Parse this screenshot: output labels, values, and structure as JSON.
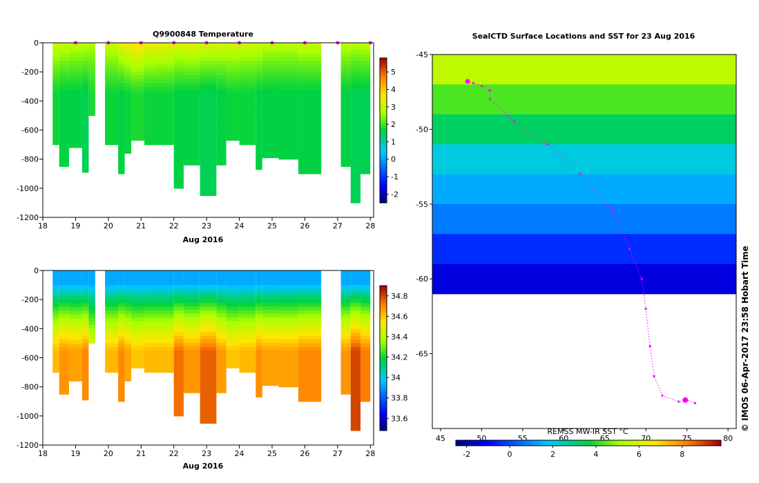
{
  "figure": {
    "credit": "© IMOS 06-Apr-2017 23:58 Hobart Time"
  },
  "chart_data": [
    {
      "type": "heatmap",
      "title": "Q9900848  Temperature",
      "xlabel": "Aug 2016",
      "ylabel": "",
      "xlim": [
        18,
        28.1
      ],
      "ylim": [
        -1200,
        0
      ],
      "x_ticks": [
        "18",
        "19",
        "20",
        "21",
        "22",
        "23",
        "24",
        "25",
        "26",
        "27",
        "28"
      ],
      "y_ticks": [
        "0",
        "-200",
        "-400",
        "-600",
        "-800",
        "-1000",
        "-1200"
      ],
      "colorbar": {
        "label": "",
        "ticks": [
          "-2",
          "-1",
          "0",
          "1",
          "2",
          "3",
          "4",
          "5"
        ],
        "min": -2.5,
        "max": 5.8
      },
      "profiles": [
        {
          "x0": 18.3,
          "x1": 18.5,
          "maxdepth": 700,
          "surface": 3.2,
          "deep": 1.7
        },
        {
          "x0": 18.5,
          "x1": 18.8,
          "maxdepth": 850,
          "surface": 3.1,
          "deep": 1.6
        },
        {
          "x0": 18.8,
          "x1": 19.2,
          "maxdepth": 720,
          "surface": 3.0,
          "deep": 1.6
        },
        {
          "x0": 19.2,
          "x1": 19.4,
          "maxdepth": 890,
          "surface": 3.0,
          "deep": 1.5
        },
        {
          "x0": 19.4,
          "x1": 19.6,
          "maxdepth": 500,
          "surface": 2.8,
          "deep": 1.8
        },
        {
          "x0": 19.9,
          "x1": 20.3,
          "maxdepth": 700,
          "surface": 3.1,
          "deep": 1.7
        },
        {
          "x0": 20.3,
          "x1": 20.5,
          "maxdepth": 900,
          "surface": 3.6,
          "deep": 1.6
        },
        {
          "x0": 20.5,
          "x1": 20.7,
          "maxdepth": 760,
          "surface": 3.8,
          "deep": 1.7
        },
        {
          "x0": 20.7,
          "x1": 21.1,
          "maxdepth": 670,
          "surface": 4.0,
          "deep": 1.8
        },
        {
          "x0": 21.1,
          "x1": 21.5,
          "maxdepth": 700,
          "surface": 3.7,
          "deep": 1.7
        },
        {
          "x0": 21.5,
          "x1": 22.0,
          "maxdepth": 700,
          "surface": 3.6,
          "deep": 1.7
        },
        {
          "x0": 22.0,
          "x1": 22.3,
          "maxdepth": 1000,
          "surface": 3.4,
          "deep": 1.6
        },
        {
          "x0": 22.3,
          "x1": 22.8,
          "maxdepth": 840,
          "surface": 3.5,
          "deep": 1.6
        },
        {
          "x0": 22.8,
          "x1": 23.3,
          "maxdepth": 1050,
          "surface": 3.4,
          "deep": 1.5
        },
        {
          "x0": 23.3,
          "x1": 23.6,
          "maxdepth": 840,
          "surface": 3.3,
          "deep": 1.6
        },
        {
          "x0": 23.6,
          "x1": 24.0,
          "maxdepth": 670,
          "surface": 3.3,
          "deep": 1.7
        },
        {
          "x0": 24.0,
          "x1": 24.5,
          "maxdepth": 700,
          "surface": 3.2,
          "deep": 1.7
        },
        {
          "x0": 24.5,
          "x1": 24.7,
          "maxdepth": 870,
          "surface": 3.2,
          "deep": 1.6
        },
        {
          "x0": 24.7,
          "x1": 25.2,
          "maxdepth": 790,
          "surface": 3.0,
          "deep": 1.6
        },
        {
          "x0": 25.2,
          "x1": 25.8,
          "maxdepth": 800,
          "surface": 3.0,
          "deep": 1.6
        },
        {
          "x0": 25.8,
          "x1": 26.5,
          "maxdepth": 900,
          "surface": 3.1,
          "deep": 1.6
        },
        {
          "x0": 27.1,
          "x1": 27.4,
          "maxdepth": 850,
          "surface": 3.0,
          "deep": 1.6
        },
        {
          "x0": 27.4,
          "x1": 27.7,
          "maxdepth": 1100,
          "surface": 2.9,
          "deep": 1.5
        },
        {
          "x0": 27.7,
          "x1": 28.0,
          "maxdepth": 900,
          "surface": 3.0,
          "deep": 1.5
        }
      ],
      "station_markers": [
        19.0,
        20.0,
        21.0,
        22.0,
        23.0,
        24.0,
        25.0,
        26.0,
        27.0,
        28.0
      ]
    },
    {
      "type": "heatmap",
      "title": "",
      "xlabel": "Aug 2016",
      "ylabel": "",
      "xlim": [
        18,
        28.1
      ],
      "ylim": [
        -1200,
        0
      ],
      "x_ticks": [
        "18",
        "19",
        "20",
        "21",
        "22",
        "23",
        "24",
        "25",
        "26",
        "27",
        "28"
      ],
      "y_ticks": [
        "0",
        "-200",
        "-400",
        "-600",
        "-800",
        "-1000",
        "-1200"
      ],
      "colorbar": {
        "label": "",
        "ticks": [
          "33.6",
          "33.8",
          "34",
          "34.2",
          "34.4",
          "34.6",
          "34.8"
        ],
        "min": 33.48,
        "max": 34.9
      },
      "profiles": [
        {
          "x0": 18.3,
          "x1": 18.5,
          "maxdepth": 700,
          "surface": 33.93,
          "deep": 34.62
        },
        {
          "x0": 18.5,
          "x1": 18.8,
          "maxdepth": 850,
          "surface": 33.93,
          "deep": 34.68
        },
        {
          "x0": 18.8,
          "x1": 19.2,
          "maxdepth": 760,
          "surface": 33.93,
          "deep": 34.66
        },
        {
          "x0": 19.2,
          "x1": 19.4,
          "maxdepth": 890,
          "surface": 33.93,
          "deep": 34.7
        },
        {
          "x0": 19.4,
          "x1": 19.6,
          "maxdepth": 500,
          "surface": 33.93,
          "deep": 34.5
        },
        {
          "x0": 19.9,
          "x1": 20.3,
          "maxdepth": 700,
          "surface": 33.93,
          "deep": 34.62
        },
        {
          "x0": 20.3,
          "x1": 20.5,
          "maxdepth": 900,
          "surface": 33.93,
          "deep": 34.7
        },
        {
          "x0": 20.5,
          "x1": 20.7,
          "maxdepth": 760,
          "surface": 33.93,
          "deep": 34.65
        },
        {
          "x0": 20.7,
          "x1": 21.1,
          "maxdepth": 670,
          "surface": 33.93,
          "deep": 34.6
        },
        {
          "x0": 21.1,
          "x1": 21.5,
          "maxdepth": 700,
          "surface": 33.93,
          "deep": 34.62
        },
        {
          "x0": 21.5,
          "x1": 22.0,
          "maxdepth": 700,
          "surface": 33.93,
          "deep": 34.62
        },
        {
          "x0": 22.0,
          "x1": 22.3,
          "maxdepth": 1000,
          "surface": 33.93,
          "deep": 34.74
        },
        {
          "x0": 22.3,
          "x1": 22.8,
          "maxdepth": 840,
          "surface": 33.93,
          "deep": 34.68
        },
        {
          "x0": 22.8,
          "x1": 23.3,
          "maxdepth": 1050,
          "surface": 33.93,
          "deep": 34.76
        },
        {
          "x0": 23.3,
          "x1": 23.6,
          "maxdepth": 840,
          "surface": 33.93,
          "deep": 34.67
        },
        {
          "x0": 23.6,
          "x1": 24.0,
          "maxdepth": 670,
          "surface": 33.93,
          "deep": 34.6
        },
        {
          "x0": 24.0,
          "x1": 24.5,
          "maxdepth": 700,
          "surface": 33.93,
          "deep": 34.62
        },
        {
          "x0": 24.5,
          "x1": 24.7,
          "maxdepth": 870,
          "surface": 33.93,
          "deep": 34.69
        },
        {
          "x0": 24.7,
          "x1": 25.2,
          "maxdepth": 790,
          "surface": 33.93,
          "deep": 34.66
        },
        {
          "x0": 25.2,
          "x1": 25.8,
          "maxdepth": 800,
          "surface": 33.93,
          "deep": 34.66
        },
        {
          "x0": 25.8,
          "x1": 26.5,
          "maxdepth": 900,
          "surface": 33.93,
          "deep": 34.7
        },
        {
          "x0": 27.1,
          "x1": 27.4,
          "maxdepth": 850,
          "surface": 33.93,
          "deep": 34.68
        },
        {
          "x0": 27.4,
          "x1": 27.7,
          "maxdepth": 1100,
          "surface": 33.93,
          "deep": 34.8
        },
        {
          "x0": 27.7,
          "x1": 28.0,
          "maxdepth": 900,
          "surface": 33.93,
          "deep": 34.72
        }
      ]
    },
    {
      "type": "heatmap",
      "title": "SealCTD Surface Locations and SST for 23 Aug 2016",
      "xlabel": "",
      "ylabel": "",
      "xlim": [
        44,
        81
      ],
      "ylim": [
        -70,
        -45
      ],
      "x_ticks": [
        "45",
        "50",
        "55",
        "60",
        "65",
        "70",
        "75",
        "80"
      ],
      "y_ticks": [
        "-45",
        "-50",
        "-55",
        "-60",
        "-65"
      ],
      "colorbar": {
        "label": "REMSS MW-IR SST °C",
        "ticks": [
          "-2",
          "0",
          "2",
          "4",
          "6",
          "8"
        ],
        "min": -2.5,
        "max": 9.8
      },
      "sst_bands": [
        {
          "lat_top": -45,
          "lat_bottom": -47,
          "sst": 5.5
        },
        {
          "lat_top": -47,
          "lat_bottom": -49,
          "sst": 4.3
        },
        {
          "lat_top": -49,
          "lat_bottom": -51,
          "sst": 3.3
        },
        {
          "lat_top": -51,
          "lat_bottom": -53,
          "sst": 2.1
        },
        {
          "lat_top": -53,
          "lat_bottom": -55,
          "sst": 1.4
        },
        {
          "lat_top": -55,
          "lat_bottom": -57,
          "sst": 0.7
        },
        {
          "lat_top": -57,
          "lat_bottom": -59,
          "sst": -0.4
        },
        {
          "lat_top": -59,
          "lat_bottom": -61,
          "sst": -1.4
        }
      ],
      "seal_track": [
        [
          48.3,
          -46.8
        ],
        [
          49.0,
          -46.9
        ],
        [
          50.0,
          -47.1
        ],
        [
          51.0,
          -47.4
        ],
        [
          51.0,
          -48.0
        ],
        [
          54.0,
          -49.5
        ],
        [
          58.0,
          -51.0
        ],
        [
          62.0,
          -53.0
        ],
        [
          66.0,
          -55.5
        ],
        [
          68.0,
          -58.0
        ],
        [
          69.5,
          -60.0
        ],
        [
          70.0,
          -62.0
        ],
        [
          70.5,
          -64.5
        ],
        [
          71.0,
          -66.5
        ],
        [
          72.0,
          -67.8
        ],
        [
          74.0,
          -68.2
        ],
        [
          75.0,
          -68.1
        ],
        [
          76.0,
          -68.3
        ]
      ],
      "current_position": [
        74.8,
        -68.1
      ]
    }
  ]
}
